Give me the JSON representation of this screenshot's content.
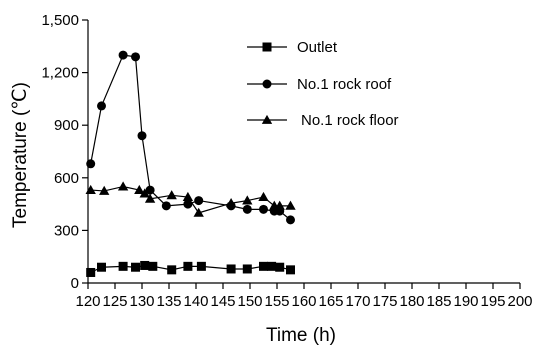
{
  "chart_data": {
    "type": "line",
    "xlabel": "Time (h)",
    "ylabel": "Temperature (℃)",
    "xlim": [
      120,
      200
    ],
    "ylim": [
      0,
      1500
    ],
    "xticks": [
      120,
      125,
      130,
      135,
      140,
      145,
      150,
      155,
      160,
      165,
      170,
      175,
      180,
      185,
      190,
      195,
      200
    ],
    "xtick_labels": [
      "120",
      "125",
      "130",
      "135",
      "140",
      "145",
      "150",
      "155",
      "160",
      "165",
      "170",
      "175",
      "180",
      "185",
      "190",
      "195",
      "200"
    ],
    "yticks": [
      0,
      300,
      600,
      900,
      1200,
      1500
    ],
    "ytick_labels": [
      "0",
      "300",
      "600",
      "900",
      "1,200",
      "1,500"
    ],
    "grid": false,
    "legend_position": "top-right",
    "series": [
      {
        "name": "Outlet",
        "marker": "square",
        "x": [
          120.5,
          122.5,
          126.5,
          128.8,
          130.5,
          132,
          135.5,
          138.5,
          141,
          146.5,
          149.5,
          152.5,
          154,
          155.5,
          157.5
        ],
        "y": [
          60,
          90,
          95,
          90,
          100,
          95,
          75,
          95,
          95,
          80,
          80,
          95,
          95,
          90,
          75
        ]
      },
      {
        "name": "No.1 rock roof",
        "marker": "circle",
        "x": [
          120.5,
          122.5,
          126.5,
          128.8,
          130,
          131.5,
          134.5,
          138.5,
          140.5,
          146.5,
          149.5,
          152.5,
          154.5,
          155.5,
          157.5
        ],
        "y": [
          680,
          1010,
          1300,
          1290,
          840,
          530,
          440,
          450,
          470,
          440,
          420,
          420,
          410,
          410,
          360
        ]
      },
      {
        "name": "No.1 rock floor",
        "marker": "triangle",
        "x": [
          120.5,
          123,
          126.5,
          129.5,
          130.5,
          131.5,
          135.5,
          138.5,
          140.5,
          146.5,
          149.5,
          152.5,
          154.5,
          155.5,
          157.5
        ],
        "y": [
          530,
          525,
          550,
          530,
          510,
          480,
          500,
          490,
          400,
          455,
          470,
          490,
          440,
          440,
          440
        ]
      }
    ]
  }
}
